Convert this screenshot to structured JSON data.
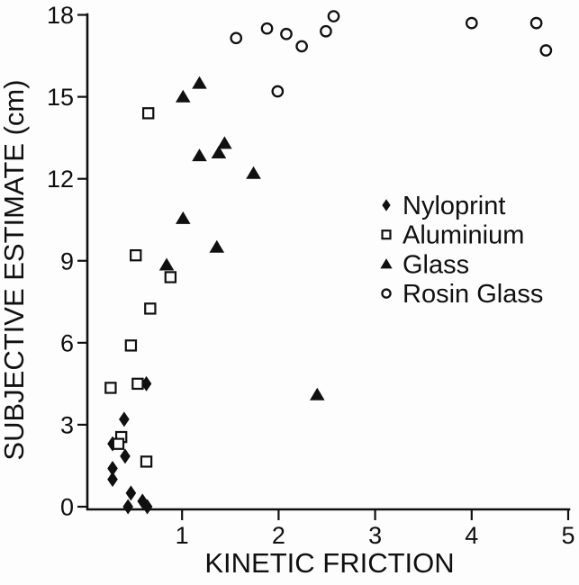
{
  "figure": {
    "background": "#fdfdfd",
    "ink_color": "#101010"
  },
  "chart_data": {
    "type": "scatter",
    "title": "",
    "xlabel": "KINETIC FRICTION",
    "ylabel": "SUBJECTIVE ESTIMATE (cm)",
    "xlim": [
      0,
      5
    ],
    "ylim": [
      0,
      18
    ],
    "xticks": [
      1,
      2,
      3,
      4,
      5
    ],
    "yticks": [
      0,
      3,
      6,
      9,
      12,
      15,
      18
    ],
    "grid": false,
    "legend_position": "center-right",
    "series": [
      {
        "name": "Nyloprint",
        "marker": "filled-diamond",
        "points": [
          [
            0.63,
            4.5
          ],
          [
            0.4,
            3.2
          ],
          [
            0.28,
            2.3
          ],
          [
            0.41,
            1.85
          ],
          [
            0.28,
            1.4
          ],
          [
            0.28,
            1.0
          ],
          [
            0.47,
            0.5
          ],
          [
            0.44,
            0.0
          ],
          [
            0.59,
            0.2
          ],
          [
            0.64,
            0.0
          ]
        ]
      },
      {
        "name": "Aluminium",
        "marker": "open-square",
        "points": [
          [
            0.65,
            14.4
          ],
          [
            0.52,
            9.2
          ],
          [
            0.88,
            8.4
          ],
          [
            0.67,
            7.25
          ],
          [
            0.47,
            5.9
          ],
          [
            0.54,
            4.5
          ],
          [
            0.26,
            4.35
          ],
          [
            0.37,
            2.55
          ],
          [
            0.34,
            2.3
          ],
          [
            0.63,
            1.65
          ]
        ]
      },
      {
        "name": "Glass",
        "marker": "filled-triangle",
        "points": [
          [
            1.18,
            15.5
          ],
          [
            1.01,
            15.0
          ],
          [
            1.44,
            13.3
          ],
          [
            1.38,
            12.95
          ],
          [
            1.18,
            12.85
          ],
          [
            1.74,
            12.2
          ],
          [
            1.01,
            10.55
          ],
          [
            1.36,
            9.5
          ],
          [
            0.84,
            8.85
          ],
          [
            2.4,
            4.1
          ]
        ]
      },
      {
        "name": "Rosin Glass",
        "marker": "open-circle",
        "points": [
          [
            2.57,
            17.95
          ],
          [
            4.0,
            17.7
          ],
          [
            4.67,
            17.7
          ],
          [
            1.88,
            17.5
          ],
          [
            2.49,
            17.4
          ],
          [
            2.08,
            17.3
          ],
          [
            1.56,
            17.15
          ],
          [
            2.24,
            16.85
          ],
          [
            4.77,
            16.7
          ],
          [
            1.99,
            15.2
          ]
        ]
      }
    ]
  }
}
